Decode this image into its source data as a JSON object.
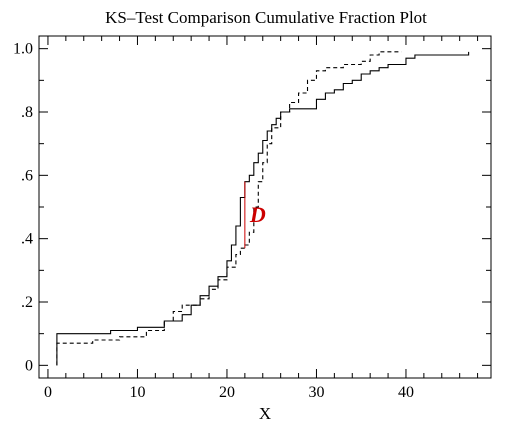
{
  "chart_data": {
    "type": "line",
    "title": "KS–Test Comparison Cumulative Fraction Plot",
    "xlabel": "X",
    "ylabel": "",
    "xlim": [
      -1,
      49.5
    ],
    "ylim": [
      -0.04,
      1.04
    ],
    "x_ticks": [
      0,
      10,
      20,
      30,
      40
    ],
    "x_tick_labels": [
      "0",
      "10",
      "20",
      "30",
      "40"
    ],
    "y_ticks": [
      0,
      0.2,
      0.4,
      0.6,
      0.8,
      1.0
    ],
    "y_tick_labels": [
      "0",
      ".2",
      ".4",
      ".6",
      ".8",
      "1.0"
    ],
    "legend": "none",
    "grid": false,
    "step": true,
    "series": [
      {
        "style": "solid",
        "x": [
          1,
          1,
          7,
          10,
          13,
          15,
          16,
          17,
          18,
          19,
          20,
          20.5,
          21,
          21.5,
          22,
          22.5,
          23,
          23.5,
          24,
          24.5,
          25,
          25.5,
          26,
          27,
          28,
          30,
          31,
          32,
          33,
          34,
          35,
          36,
          37,
          38,
          40,
          41,
          47
        ],
        "y": [
          0,
          0.1,
          0.11,
          0.12,
          0.14,
          0.16,
          0.19,
          0.22,
          0.25,
          0.28,
          0.33,
          0.38,
          0.44,
          0.53,
          0.58,
          0.6,
          0.64,
          0.67,
          0.71,
          0.74,
          0.76,
          0.78,
          0.8,
          0.81,
          0.81,
          0.84,
          0.86,
          0.87,
          0.89,
          0.9,
          0.92,
          0.93,
          0.94,
          0.95,
          0.97,
          0.98,
          0.99
        ]
      },
      {
        "style": "dashed",
        "x": [
          1,
          1,
          5,
          8,
          11,
          13,
          14,
          15,
          17,
          18,
          19,
          20,
          21,
          21.5,
          22,
          22.5,
          23,
          23.5,
          24,
          24.5,
          25,
          26,
          27,
          28,
          29,
          30,
          31,
          33,
          35,
          36,
          37,
          39,
          39.5
        ],
        "y": [
          0,
          0.07,
          0.08,
          0.09,
          0.11,
          0.14,
          0.17,
          0.19,
          0.21,
          0.24,
          0.27,
          0.31,
          0.35,
          0.37,
          0.38,
          0.42,
          0.5,
          0.58,
          0.64,
          0.7,
          0.75,
          0.8,
          0.83,
          0.86,
          0.9,
          0.93,
          0.94,
          0.95,
          0.96,
          0.98,
          0.99,
          0.99,
          0.99
        ]
      }
    ],
    "annotations": [
      {
        "label": "D",
        "x": 22,
        "y_from": 0.37,
        "y_to": 0.58,
        "color": "#cc0000"
      }
    ]
  }
}
